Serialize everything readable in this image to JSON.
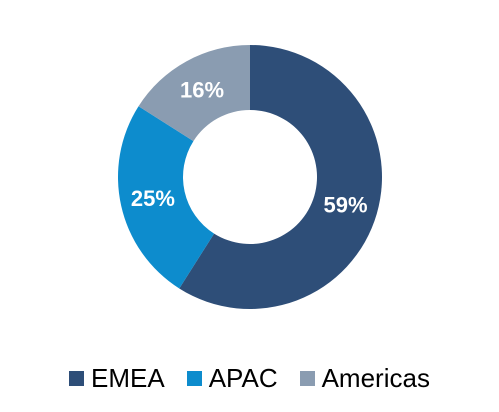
{
  "chart_data": {
    "type": "pie",
    "style": "donut",
    "categories": [
      "EMEA",
      "APAC",
      "Americas"
    ],
    "values": [
      59,
      25,
      16
    ],
    "value_labels": [
      "59%",
      "25%",
      "16%"
    ],
    "colors": [
      "#2E4E78",
      "#0D8CCD",
      "#8A9CB1"
    ],
    "label_color": "#FFFFFF",
    "legend": {
      "placement": "bottom",
      "entries": [
        "EMEA",
        "APAC",
        "Americas"
      ]
    }
  }
}
